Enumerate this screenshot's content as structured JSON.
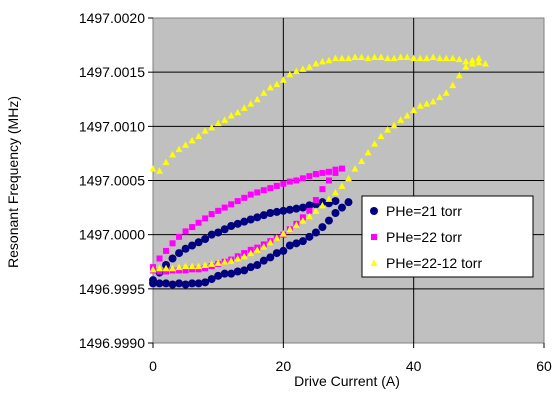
{
  "chart_data": {
    "type": "scatter",
    "xlabel": "Drive Current (A)",
    "ylabel": "Resonant Frequency (MHz)",
    "xlim": [
      0,
      60
    ],
    "ylim": [
      1496.999,
      1497.002
    ],
    "x_ticks": [
      "0",
      "20",
      "40",
      "60"
    ],
    "y_ticks": [
      "1496.9990",
      "1496.9995",
      "1497.0000",
      "1497.0005",
      "1497.0010",
      "1497.0015",
      "1497.0020"
    ],
    "grid": true,
    "legend_position": "right",
    "series": [
      {
        "name": "PHe=21 torr",
        "marker": "circle",
        "color": "#000080",
        "points": [
          [
            0,
            1496.99955
          ],
          [
            1,
            1496.99955
          ],
          [
            2,
            1496.99955
          ],
          [
            3,
            1496.99954
          ],
          [
            4,
            1496.99955
          ],
          [
            5,
            1496.99954
          ],
          [
            6,
            1496.99955
          ],
          [
            7,
            1496.99955
          ],
          [
            8,
            1496.99956
          ],
          [
            9,
            1496.99959
          ],
          [
            10,
            1496.99962
          ],
          [
            11,
            1496.99964
          ],
          [
            12,
            1496.99964
          ],
          [
            13,
            1496.99966
          ],
          [
            14,
            1496.99967
          ],
          [
            15,
            1496.9997
          ],
          [
            16,
            1496.99972
          ],
          [
            17,
            1496.99976
          ],
          [
            18,
            1496.99979
          ],
          [
            19,
            1496.99983
          ],
          [
            20,
            1496.99985
          ],
          [
            21,
            1496.9999
          ],
          [
            22,
            1496.99992
          ],
          [
            23,
            1496.99994
          ],
          [
            24,
            1496.99998
          ],
          [
            25,
            1497.00002
          ],
          [
            26,
            1497.00007
          ],
          [
            27,
            1497.00013
          ],
          [
            28,
            1497.0002
          ],
          [
            29,
            1497.00025
          ],
          [
            30,
            1497.0003
          ],
          [
            28,
            1497.00031
          ],
          [
            27,
            1497.00029
          ],
          [
            26,
            1497.0003
          ],
          [
            25,
            1497.00028
          ],
          [
            24,
            1497.00027
          ],
          [
            23,
            1497.00025
          ],
          [
            22,
            1497.00024
          ],
          [
            21,
            1497.00023
          ],
          [
            20,
            1497.00022
          ],
          [
            19,
            1497.00021
          ],
          [
            18,
            1497.0002
          ],
          [
            17,
            1497.00018
          ],
          [
            16,
            1497.00016
          ],
          [
            15,
            1497.00014
          ],
          [
            14,
            1497.00012
          ],
          [
            13,
            1497.0001
          ],
          [
            12,
            1497.00008
          ],
          [
            11,
            1497.00005
          ],
          [
            10,
            1497.00002
          ],
          [
            9,
            1497.0
          ],
          [
            8,
            1496.99996
          ],
          [
            7,
            1496.99993
          ],
          [
            6,
            1496.9999
          ],
          [
            5,
            1496.99987
          ],
          [
            4,
            1496.99983
          ],
          [
            3,
            1496.99978
          ],
          [
            2,
            1496.99972
          ],
          [
            1,
            1496.99965
          ],
          [
            0,
            1496.99958
          ]
        ]
      },
      {
        "name": "PHe=22 torr",
        "marker": "square",
        "color": "#ff00ff",
        "points": [
          [
            0,
            1496.99967
          ],
          [
            1,
            1496.99966
          ],
          [
            2,
            1496.99966
          ],
          [
            3,
            1496.99967
          ],
          [
            4,
            1496.99967
          ],
          [
            5,
            1496.99967
          ],
          [
            6,
            1496.99968
          ],
          [
            7,
            1496.99968
          ],
          [
            8,
            1496.99969
          ],
          [
            9,
            1496.99971
          ],
          [
            10,
            1496.99973
          ],
          [
            11,
            1496.99975
          ],
          [
            12,
            1496.99977
          ],
          [
            13,
            1496.9998
          ],
          [
            14,
            1496.99983
          ],
          [
            15,
            1496.99986
          ],
          [
            16,
            1496.99988
          ],
          [
            17,
            1496.99991
          ],
          [
            18,
            1496.99994
          ],
          [
            19,
            1496.99997
          ],
          [
            20,
            1497.0
          ],
          [
            21,
            1497.00005
          ],
          [
            22,
            1497.0001
          ],
          [
            23,
            1497.00016
          ],
          [
            24,
            1497.00022
          ],
          [
            25,
            1497.00032
          ],
          [
            26,
            1497.00042
          ],
          [
            27,
            1497.0005
          ],
          [
            28,
            1497.00057
          ],
          [
            29,
            1497.00061
          ],
          [
            28,
            1497.0006
          ],
          [
            27,
            1497.00058
          ],
          [
            26,
            1497.00057
          ],
          [
            25,
            1497.00056
          ],
          [
            24,
            1497.00054
          ],
          [
            23,
            1497.00052
          ],
          [
            22,
            1497.0005
          ],
          [
            21,
            1497.00049
          ],
          [
            20,
            1497.00047
          ],
          [
            19,
            1497.00045
          ],
          [
            18,
            1497.00043
          ],
          [
            17,
            1497.00041
          ],
          [
            16,
            1497.00039
          ],
          [
            15,
            1497.00037
          ],
          [
            14,
            1497.00034
          ],
          [
            13,
            1497.00031
          ],
          [
            12,
            1497.00028
          ],
          [
            11,
            1497.00025
          ],
          [
            10,
            1497.00022
          ],
          [
            9,
            1497.00019
          ],
          [
            8,
            1497.00015
          ],
          [
            7,
            1497.00011
          ],
          [
            6,
            1497.00007
          ],
          [
            5,
            1497.00003
          ],
          [
            4,
            1496.99998
          ],
          [
            3,
            1496.99992
          ],
          [
            2,
            1496.99985
          ],
          [
            1,
            1496.99978
          ],
          [
            0,
            1496.9997
          ]
        ]
      },
      {
        "name": "PHe=22-12 torr",
        "marker": "triangle",
        "color": "#ffff00",
        "points": [
          [
            0,
            1497.00061
          ],
          [
            1,
            1497.00059
          ],
          [
            2,
            1497.00067
          ],
          [
            3,
            1497.00074
          ],
          [
            4,
            1497.00079
          ],
          [
            5,
            1497.00083
          ],
          [
            6,
            1497.00087
          ],
          [
            7,
            1497.00091
          ],
          [
            8,
            1497.00096
          ],
          [
            9,
            1497.00099
          ],
          [
            10,
            1497.00103
          ],
          [
            11,
            1497.00106
          ],
          [
            12,
            1497.0011
          ],
          [
            13,
            1497.00113
          ],
          [
            14,
            1497.00117
          ],
          [
            15,
            1497.00121
          ],
          [
            16,
            1497.00125
          ],
          [
            17,
            1497.00131
          ],
          [
            18,
            1497.00136
          ],
          [
            19,
            1497.00139
          ],
          [
            20,
            1497.00143
          ],
          [
            21,
            1497.00148
          ],
          [
            22,
            1497.00151
          ],
          [
            23,
            1497.00153
          ],
          [
            24,
            1497.00155
          ],
          [
            25,
            1497.00158
          ],
          [
            26,
            1497.0016
          ],
          [
            27,
            1497.00161
          ],
          [
            28,
            1497.00163
          ],
          [
            29,
            1497.00163
          ],
          [
            30,
            1497.00163
          ],
          [
            31,
            1497.00164
          ],
          [
            32,
            1497.00164
          ],
          [
            33,
            1497.00163
          ],
          [
            34,
            1497.00164
          ],
          [
            35,
            1497.00164
          ],
          [
            36,
            1497.00163
          ],
          [
            37,
            1497.00163
          ],
          [
            38,
            1497.00164
          ],
          [
            39,
            1497.00164
          ],
          [
            40,
            1497.00163
          ],
          [
            41,
            1497.00163
          ],
          [
            42,
            1497.00163
          ],
          [
            43,
            1497.00164
          ],
          [
            44,
            1497.00163
          ],
          [
            45,
            1497.00163
          ],
          [
            46,
            1497.00163
          ],
          [
            47,
            1497.00162
          ],
          [
            48,
            1497.0016
          ],
          [
            49,
            1497.00158
          ],
          [
            50,
            1497.00159
          ],
          [
            51,
            1497.00158
          ],
          [
            50,
            1497.00163
          ],
          [
            49,
            1497.00161
          ],
          [
            48,
            1497.00155
          ],
          [
            47,
            1497.00147
          ],
          [
            46,
            1497.00138
          ],
          [
            45,
            1497.00131
          ],
          [
            44,
            1497.00127
          ],
          [
            43,
            1497.00123
          ],
          [
            42,
            1497.00121
          ],
          [
            41,
            1497.00119
          ],
          [
            40,
            1497.00115
          ],
          [
            39,
            1497.0011
          ],
          [
            38,
            1497.00106
          ],
          [
            37,
            1497.00101
          ],
          [
            36,
            1497.00097
          ],
          [
            35,
            1497.00091
          ],
          [
            34,
            1497.00084
          ],
          [
            33,
            1497.00076
          ],
          [
            32,
            1497.00068
          ],
          [
            31,
            1497.00061
          ],
          [
            30,
            1497.00052
          ],
          [
            29,
            1497.00045
          ],
          [
            28,
            1497.00039
          ],
          [
            27,
            1497.00033
          ],
          [
            26,
            1497.00027
          ],
          [
            25,
            1497.00022
          ],
          [
            24,
            1497.00017
          ],
          [
            23,
            1497.00013
          ],
          [
            22,
            1497.00009
          ],
          [
            21,
            1497.00005
          ],
          [
            20,
            1497.00001
          ],
          [
            19,
            1496.99997
          ],
          [
            18,
            1496.99993
          ],
          [
            17,
            1496.99989
          ],
          [
            16,
            1496.99986
          ],
          [
            15,
            1496.99983
          ],
          [
            14,
            1496.9998
          ],
          [
            13,
            1496.99978
          ],
          [
            12,
            1496.99976
          ],
          [
            11,
            1496.99975
          ],
          [
            10,
            1496.99974
          ],
          [
            9,
            1496.99973
          ],
          [
            8,
            1496.99972
          ],
          [
            7,
            1496.99971
          ],
          [
            6,
            1496.99971
          ],
          [
            5,
            1496.99971
          ],
          [
            4,
            1496.9997
          ],
          [
            3,
            1496.99969
          ],
          [
            2,
            1496.99969
          ],
          [
            1,
            1496.99969
          ],
          [
            0,
            1496.99968
          ]
        ]
      }
    ]
  }
}
